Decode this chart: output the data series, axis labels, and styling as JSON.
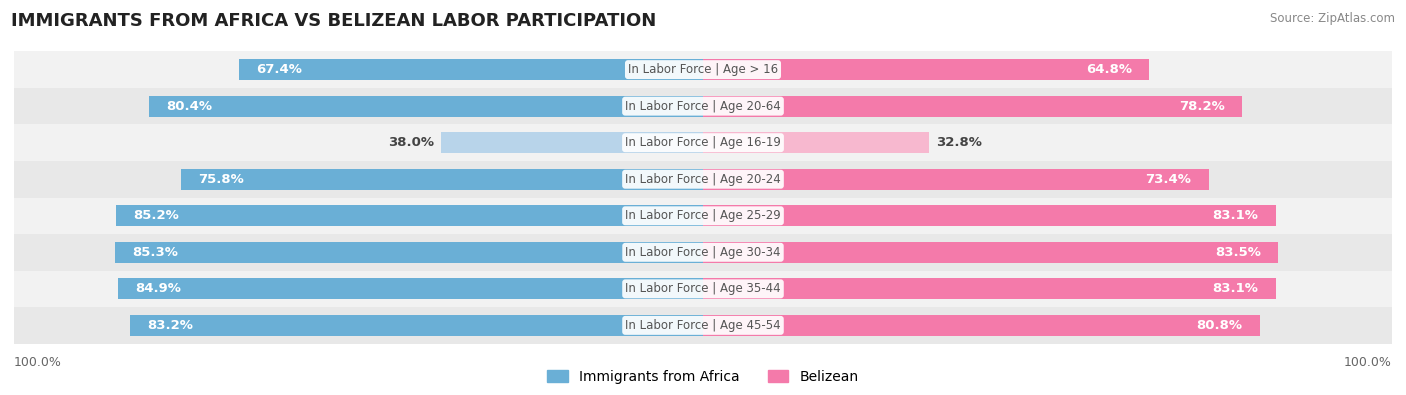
{
  "title": "IMMIGRANTS FROM AFRICA VS BELIZEAN LABOR PARTICIPATION",
  "source": "Source: ZipAtlas.com",
  "categories": [
    "In Labor Force | Age > 16",
    "In Labor Force | Age 20-64",
    "In Labor Force | Age 16-19",
    "In Labor Force | Age 20-24",
    "In Labor Force | Age 25-29",
    "In Labor Force | Age 30-34",
    "In Labor Force | Age 35-44",
    "In Labor Force | Age 45-54"
  ],
  "africa_values": [
    67.4,
    80.4,
    38.0,
    75.8,
    85.2,
    85.3,
    84.9,
    83.2
  ],
  "belizean_values": [
    64.8,
    78.2,
    32.8,
    73.4,
    83.1,
    83.5,
    83.1,
    80.8
  ],
  "africa_color": "#6aafd6",
  "africa_color_light": "#b8d4ea",
  "belizean_color": "#f47aaa",
  "belizean_color_light": "#f7b8cf",
  "row_bg_color_odd": "#f2f2f2",
  "row_bg_color_even": "#e8e8e8",
  "max_value": 100.0,
  "bar_height": 0.58,
  "label_fontsize": 9.5,
  "title_fontsize": 13,
  "legend_fontsize": 10,
  "axis_label_fontsize": 9,
  "center_label_color": "#555555",
  "value_label_white": "#ffffff",
  "value_label_dark": "#444444"
}
